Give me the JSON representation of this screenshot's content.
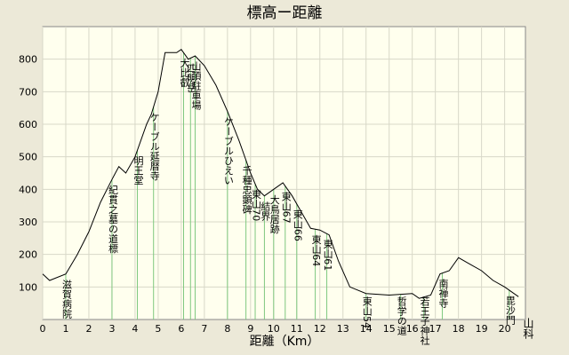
{
  "chart_data": {
    "type": "line",
    "title": "標高ー距離",
    "x_label": "距離（Km）",
    "x": [
      0,
      0.3,
      1,
      1.5,
      2,
      2.5,
      3,
      3.3,
      3.6,
      4,
      4.5,
      4.7,
      5,
      5.3,
      5.8,
      6,
      6.3,
      6.6,
      7,
      7.5,
      8,
      8.5,
      9,
      9.3,
      9.6,
      10,
      10.4,
      10.8,
      11.2,
      11.6,
      12,
      12.4,
      12.8,
      13.3,
      14,
      15,
      16,
      16.3,
      16.8,
      17.2,
      17.6,
      18,
      18.5,
      19,
      19.5,
      20,
      20.6
    ],
    "values": [
      140,
      120,
      140,
      200,
      270,
      360,
      430,
      470,
      450,
      500,
      600,
      630,
      700,
      820,
      820,
      830,
      800,
      810,
      780,
      720,
      640,
      550,
      450,
      400,
      380,
      400,
      420,
      380,
      330,
      280,
      275,
      260,
      180,
      100,
      80,
      75,
      80,
      65,
      75,
      140,
      150,
      190,
      170,
      150,
      120,
      100,
      70
    ],
    "color": "#000000",
    "xlim": [
      0,
      20.9
    ],
    "ylim": [
      0,
      900
    ],
    "xticks": [
      0,
      1,
      2,
      3,
      4,
      5,
      6,
      7,
      8,
      9,
      10,
      11,
      12,
      13,
      14,
      15,
      16,
      17,
      18,
      19,
      20
    ],
    "yticks": [
      100,
      200,
      300,
      400,
      500,
      600,
      700,
      800
    ],
    "grid": true,
    "markers": [
      {
        "label": "滋賀病院",
        "x": 1.0
      },
      {
        "label": "紀貫之墓の道標",
        "x": 3.0
      },
      {
        "label": "明王堂",
        "x": 4.1
      },
      {
        "label": "ケーブル延暦寺",
        "x": 4.8
      },
      {
        "label": "大比叡",
        "x": 6.1
      },
      {
        "label": "四明岳",
        "x": 6.4
      },
      {
        "label": "山頂駐車場",
        "x": 6.6
      },
      {
        "label": "ケーブルひえい",
        "x": 8.0
      },
      {
        "label": "千種忠顕碑",
        "x": 8.8
      },
      {
        "label": "東山70",
        "x": 9.2
      },
      {
        "label": "結界",
        "x": 9.6
      },
      {
        "label": "大鳥居跡",
        "x": 10.0
      },
      {
        "label": "東山67",
        "x": 10.5
      },
      {
        "label": "東山66",
        "x": 11.0
      },
      {
        "label": "東山64",
        "x": 11.8
      },
      {
        "label": "東山61",
        "x": 12.3
      },
      {
        "label": "東山54",
        "x": 14.0
      },
      {
        "label": "哲学の道",
        "x": 15.5
      },
      {
        "label": "若王子神社",
        "x": 16.5
      },
      {
        "label": "南禅寺",
        "x": 17.3
      },
      {
        "label": "毘沙門",
        "x": 20.2
      }
    ],
    "end_label": "山科"
  }
}
